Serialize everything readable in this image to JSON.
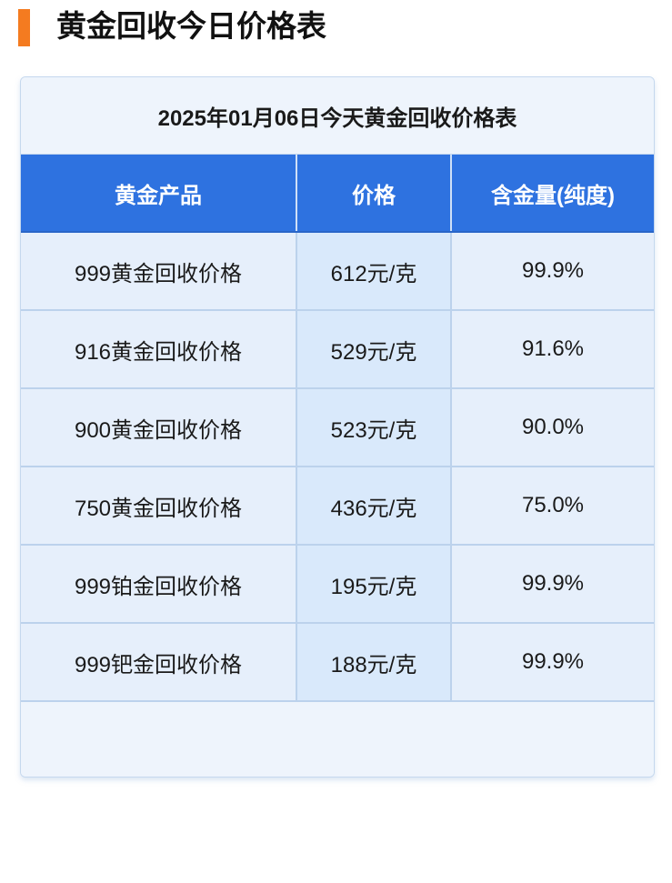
{
  "page": {
    "title": "黄金回收今日价格表",
    "accent_color": "#f47b20"
  },
  "table": {
    "caption": "2025年01月06日今天黄金回收价格表",
    "header_color": "#2e72e0",
    "columns": [
      "黄金产品",
      "价格",
      "含金量(纯度)"
    ],
    "rows": [
      [
        "999黄金回收价格",
        "612元/克",
        "99.9%"
      ],
      [
        "916黄金回收价格",
        "529元/克",
        "91.6%"
      ],
      [
        "900黄金回收价格",
        "523元/克",
        "90.0%"
      ],
      [
        "750黄金回收价格",
        "436元/克",
        "75.0%"
      ],
      [
        "999铂金回收价格",
        "195元/克",
        "99.9%"
      ],
      [
        "999钯金回收价格",
        "188元/克",
        "99.9%"
      ]
    ]
  }
}
